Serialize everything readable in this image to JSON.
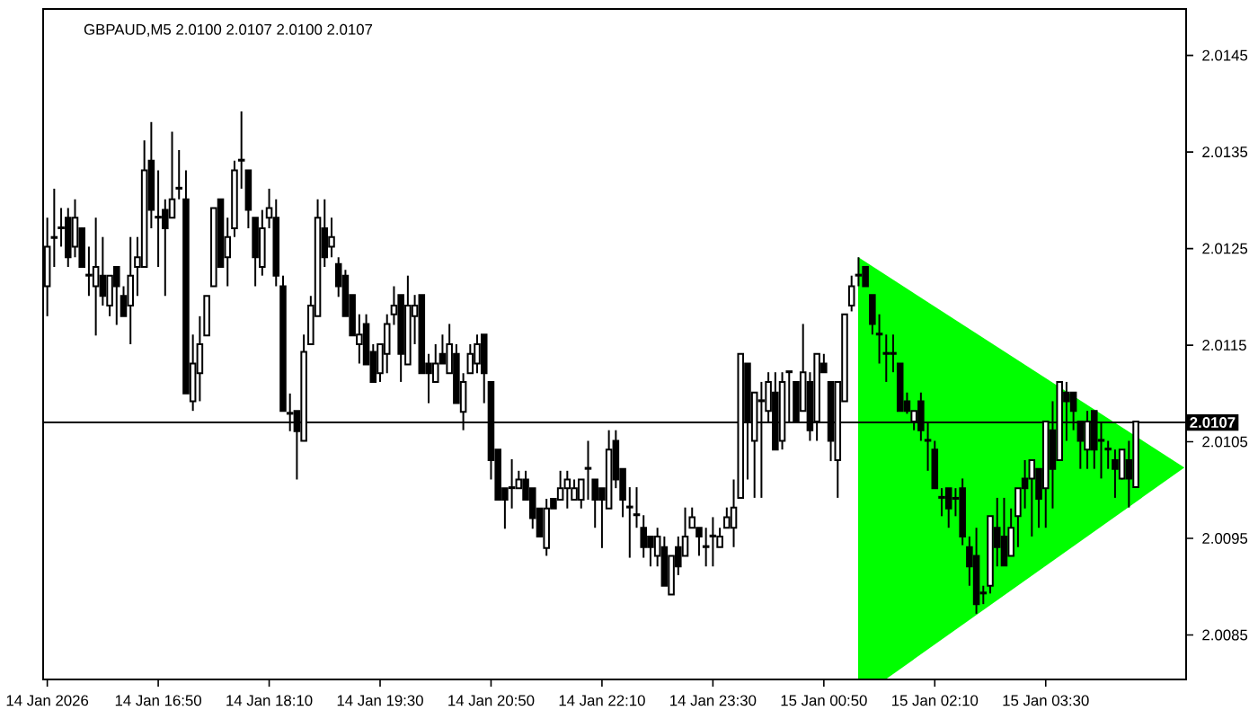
{
  "chart_data": {
    "type": "candlestick",
    "title": "GBPAUD,M5  2.0100 2.0107 2.0100 2.0107",
    "categories": [
      "14 Jan 2026",
      null,
      null,
      null,
      null,
      null,
      null,
      null,
      null,
      null,
      null,
      null,
      null,
      null,
      null,
      null,
      "14 Jan 16:50",
      null,
      null,
      null,
      null,
      null,
      null,
      null,
      null,
      null,
      null,
      null,
      null,
      null,
      null,
      null,
      "14 Jan 18:10",
      null,
      null,
      null,
      null,
      null,
      null,
      null,
      null,
      null,
      null,
      null,
      null,
      null,
      null,
      null,
      "14 Jan 19:30",
      null,
      null,
      null,
      null,
      null,
      null,
      null,
      null,
      null,
      null,
      null,
      null,
      null,
      null,
      null,
      "14 Jan 20:50",
      null,
      null,
      null,
      null,
      null,
      null,
      null,
      null,
      null,
      null,
      null,
      null,
      null,
      null,
      null,
      "14 Jan 22:10",
      null,
      null,
      null,
      null,
      null,
      null,
      null,
      null,
      null,
      null,
      null,
      null,
      null,
      null,
      null,
      "14 Jan 23:30",
      null,
      null,
      null,
      null,
      null,
      null,
      null,
      null,
      null,
      null,
      null,
      null,
      null,
      null,
      null,
      "15 Jan 00:50",
      null,
      null,
      null,
      null,
      null,
      null,
      null,
      null,
      null,
      null,
      null,
      null,
      null,
      null,
      null,
      "15 Jan 02:10",
      null,
      null,
      null,
      null,
      null,
      null,
      null,
      null,
      null,
      null,
      null,
      null,
      null,
      null,
      null,
      "15 Jan 03:30",
      null,
      null,
      null,
      null,
      null,
      null,
      null,
      null,
      null,
      null,
      null,
      null,
      null
    ],
    "ohlc": [
      [
        2.01211,
        2.01282,
        2.0118,
        2.01252
      ],
      [
        2.01261,
        2.01312,
        2.01231,
        2.01262
      ],
      [
        2.01271,
        2.01292,
        2.01252,
        2.01272
      ],
      [
        2.01282,
        2.01292,
        2.01231,
        2.01241
      ],
      [
        2.01252,
        2.01301,
        2.01241,
        2.01282
      ],
      [
        2.01271,
        2.01272,
        2.01231,
        2.01231
      ],
      [
        2.01222,
        2.01252,
        2.01201,
        2.01223
      ],
      [
        2.01211,
        2.01282,
        2.0116,
        2.01231
      ],
      [
        2.01222,
        2.01262,
        2.01191,
        2.01201
      ],
      [
        2.01191,
        2.01222,
        2.0118,
        2.01222
      ],
      [
        2.01231,
        2.01231,
        2.01171,
        2.01211
      ],
      [
        2.01201,
        2.01211,
        2.0118,
        2.0118
      ],
      [
        2.01191,
        2.01262,
        2.01151,
        2.01222
      ],
      [
        2.01231,
        2.01262,
        2.01201,
        2.01241
      ],
      [
        2.01231,
        2.01362,
        2.01231,
        2.01331
      ],
      [
        2.01341,
        2.01381,
        2.01271,
        2.0129
      ],
      [
        2.01282,
        2.01331,
        2.01231,
        2.01283
      ],
      [
        2.0129,
        2.01301,
        2.01201,
        2.01271
      ],
      [
        2.01282,
        2.01371,
        2.01282,
        2.01301
      ],
      [
        2.01312,
        2.01352,
        2.01301,
        2.01313
      ],
      [
        2.01301,
        2.01331,
        2.011,
        2.011
      ],
      [
        2.01092,
        2.01161,
        2.01082,
        2.01131
      ],
      [
        2.01121,
        2.0118,
        2.01092,
        2.01151
      ],
      [
        2.0116,
        2.01201,
        2.0116,
        2.01201
      ],
      [
        2.01211,
        2.01292,
        2.01211,
        2.01292
      ],
      [
        2.01301,
        2.01301,
        2.01231,
        2.01231
      ],
      [
        2.01241,
        2.01282,
        2.01211,
        2.01262
      ],
      [
        2.01271,
        2.01341,
        2.01262,
        2.01331
      ],
      [
        2.01341,
        2.01392,
        2.01312,
        2.01342
      ],
      [
        2.01331,
        2.01331,
        2.01271,
        2.0129
      ],
      [
        2.01282,
        2.01282,
        2.01211,
        2.01241
      ],
      [
        2.01231,
        2.0129,
        2.01222,
        2.01271
      ],
      [
        2.01282,
        2.01312,
        2.01271,
        2.01292
      ],
      [
        2.01282,
        2.01301,
        2.01211,
        2.01222
      ],
      [
        2.01211,
        2.01222,
        2.01082,
        2.01082
      ],
      [
        2.01079,
        2.011,
        2.01061,
        2.0108
      ],
      [
        2.01082,
        2.01082,
        2.01011,
        2.01061
      ],
      [
        2.01051,
        2.01161,
        2.01051,
        2.01143
      ],
      [
        2.01151,
        2.01201,
        2.01151,
        2.01191
      ],
      [
        2.0118,
        2.01301,
        2.0118,
        2.01282
      ],
      [
        2.01271,
        2.01301,
        2.01231,
        2.01241
      ],
      [
        2.01252,
        2.01282,
        2.01241,
        2.01262
      ],
      [
        2.01234,
        2.01241,
        2.012,
        2.01211
      ],
      [
        2.01222,
        2.01228,
        2.0118,
        2.0118
      ],
      [
        2.01202,
        2.01202,
        2.0116,
        2.0116
      ],
      [
        2.01151,
        2.01182,
        2.01131,
        2.01161
      ],
      [
        2.01172,
        2.01182,
        2.0113,
        2.0113
      ],
      [
        2.01143,
        2.01151,
        2.01112,
        2.01112
      ],
      [
        2.01121,
        2.01151,
        2.01112,
        2.01151
      ],
      [
        2.01141,
        2.01182,
        2.01121,
        2.01172
      ],
      [
        2.01182,
        2.01211,
        2.01171,
        2.01191
      ],
      [
        2.01202,
        2.01202,
        2.01112,
        2.01141
      ],
      [
        2.0113,
        2.01222,
        2.0113,
        2.01191
      ],
      [
        2.0118,
        2.01202,
        2.01151,
        2.01191
      ],
      [
        2.01202,
        2.01202,
        2.01121,
        2.01121
      ],
      [
        2.01131,
        2.01141,
        2.0109,
        2.01121
      ],
      [
        2.01112,
        2.01151,
        2.01112,
        2.01131
      ],
      [
        2.01141,
        2.01161,
        2.01131,
        2.01131
      ],
      [
        2.01121,
        2.01172,
        2.01121,
        2.01151
      ],
      [
        2.01141,
        2.01151,
        2.0109,
        2.0109
      ],
      [
        2.01081,
        2.01121,
        2.01062,
        2.01112
      ],
      [
        2.01121,
        2.01151,
        2.01121,
        2.01141
      ],
      [
        2.01131,
        2.01161,
        2.01121,
        2.01151
      ],
      [
        2.01161,
        2.01161,
        2.0109,
        2.01121
      ],
      [
        2.01112,
        2.01112,
        2.01011,
        2.01031
      ],
      [
        2.01042,
        2.01042,
        2.0099,
        2.0099
      ],
      [
        2.01002,
        2.01002,
        2.0096,
        2.0099
      ],
      [
        2.01002,
        2.01032,
        2.00981,
        2.01003
      ],
      [
        2.01002,
        2.0102,
        2.01002,
        2.01011
      ],
      [
        2.01011,
        2.0102,
        2.0099,
        2.0099
      ],
      [
        2.01002,
        2.01002,
        2.0096,
        2.00971
      ],
      [
        2.00981,
        2.00981,
        2.00952,
        2.00952
      ],
      [
        2.0094,
        2.00991,
        2.00932,
        2.00981
      ],
      [
        2.00991,
        2.00991,
        2.00981,
        2.00981
      ],
      [
        2.0099,
        2.0102,
        2.0099,
        2.01002
      ],
      [
        2.01002,
        2.0102,
        2.00981,
        2.01011
      ],
      [
        2.0099,
        2.01011,
        2.0099,
        2.01002
      ],
      [
        2.0099,
        2.01011,
        2.00981,
        2.01011
      ],
      [
        2.01022,
        2.01051,
        2.0099,
        2.01023
      ],
      [
        2.01011,
        2.01011,
        2.00961,
        2.0099
      ],
      [
        2.01002,
        2.01002,
        2.0094,
        2.0099
      ],
      [
        2.00981,
        2.01062,
        2.00981,
        2.01042
      ],
      [
        2.01051,
        2.01062,
        2.01002,
        2.01011
      ],
      [
        2.01022,
        2.01022,
        2.00972,
        2.0099
      ],
      [
        2.00982,
        2.01003,
        2.0093,
        2.00983
      ],
      [
        2.00974,
        2.01003,
        2.00961,
        2.00975
      ],
      [
        2.00961,
        2.00974,
        2.0093,
        2.00941
      ],
      [
        2.00952,
        2.00952,
        2.00921,
        2.00941
      ],
      [
        2.00932,
        2.00961,
        2.00921,
        2.00952
      ],
      [
        2.00941,
        2.00952,
        2.00901,
        2.00901
      ],
      [
        2.00892,
        2.00932,
        2.00892,
        2.00932
      ],
      [
        2.00941,
        2.00952,
        2.00912,
        2.00921
      ],
      [
        2.00932,
        2.00982,
        2.00932,
        2.00952
      ],
      [
        2.00961,
        2.00982,
        2.00961,
        2.00972
      ],
      [
        2.00961,
        2.00961,
        2.00932,
        2.00952
      ],
      [
        2.00941,
        2.00961,
        2.00921,
        2.00942
      ],
      [
        2.00952,
        2.00972,
        2.00921,
        2.00953
      ],
      [
        2.00941,
        2.00961,
        2.00941,
        2.00952
      ],
      [
        2.00961,
        2.00982,
        2.00961,
        2.00972
      ],
      [
        2.00961,
        2.01011,
        2.00941,
        2.00982
      ],
      [
        2.00992,
        2.01141,
        2.00992,
        2.01141
      ],
      [
        2.01131,
        2.01131,
        2.01011,
        2.01071
      ],
      [
        2.01051,
        2.01101,
        2.00992,
        2.01101
      ],
      [
        2.01092,
        2.01112,
        2.00992,
        2.01093
      ],
      [
        2.01082,
        2.01122,
        2.01071,
        2.01112
      ],
      [
        2.01101,
        2.01122,
        2.01042,
        2.01042
      ],
      [
        2.01051,
        2.01122,
        2.01042,
        2.01112
      ],
      [
        2.01122,
        2.01123,
        2.01071,
        2.01123
      ],
      [
        2.01112,
        2.01112,
        2.01071,
        2.01071
      ],
      [
        2.01082,
        2.01172,
        2.01082,
        2.01122
      ],
      [
        2.01112,
        2.01122,
        2.01051,
        2.01062
      ],
      [
        2.01071,
        2.01141,
        2.01051,
        2.01141
      ],
      [
        2.01131,
        2.01141,
        2.01122,
        2.01122
      ],
      [
        2.01112,
        2.01112,
        2.0103,
        2.01051
      ],
      [
        2.01031,
        2.01112,
        2.00992,
        2.01112
      ],
      [
        2.01092,
        2.01182,
        2.01092,
        2.01182
      ],
      [
        2.01191,
        2.01222,
        2.01185,
        2.01211
      ],
      [
        2.01222,
        2.01241,
        2.01211,
        2.01223
      ],
      [
        2.01231,
        2.01231,
        2.01211,
        2.01211
      ],
      [
        2.01202,
        2.01202,
        2.01161,
        2.01172
      ],
      [
        2.01161,
        2.01182,
        2.01131,
        2.01162
      ],
      [
        2.01141,
        2.01161,
        2.01112,
        2.01142
      ],
      [
        2.01141,
        2.01161,
        2.01122,
        2.01142
      ],
      [
        2.01131,
        2.01131,
        2.01082,
        2.01082
      ],
      [
        2.01092,
        2.01101,
        2.01079,
        2.01082
      ],
      [
        2.01071,
        2.01082,
        2.01062,
        2.01082
      ],
      [
        2.01092,
        2.01101,
        2.01051,
        2.01062
      ],
      [
        2.01051,
        2.01071,
        2.0102,
        2.01052
      ],
      [
        2.01042,
        2.01051,
        2.01002,
        2.01002
      ],
      [
        2.00992,
        2.01002,
        2.00973,
        2.00993
      ],
      [
        2.01002,
        2.01002,
        2.00961,
        2.00981
      ],
      [
        2.00992,
        2.01002,
        2.00973,
        2.00991
      ],
      [
        2.01002,
        2.01012,
        2.00943,
        2.00952
      ],
      [
        2.00941,
        2.00952,
        2.00901,
        2.00921
      ],
      [
        2.00932,
        2.00961,
        2.00872,
        2.00882
      ],
      [
        2.00893,
        2.00901,
        2.00882,
        2.00894
      ],
      [
        2.00901,
        2.00973,
        2.00893,
        2.00973
      ],
      [
        2.00961,
        2.00992,
        2.00921,
        2.00941
      ],
      [
        2.00952,
        2.00992,
        2.00922,
        2.00922
      ],
      [
        2.00932,
        2.00981,
        2.00932,
        2.00961
      ],
      [
        2.00973,
        2.01002,
        2.00941,
        2.01002
      ],
      [
        2.01012,
        2.01031,
        2.00981,
        2.01002
      ],
      [
        2.01012,
        2.01031,
        2.00952,
        2.01031
      ],
      [
        2.01022,
        2.01022,
        2.00961,
        2.00991
      ],
      [
        2.01002,
        2.01071,
        2.00961,
        2.01071
      ],
      [
        2.01062,
        2.01092,
        2.00981,
        2.01022
      ],
      [
        2.01031,
        2.01112,
        2.01031,
        2.01112
      ],
      [
        2.01101,
        2.01112,
        2.01051,
        2.01092
      ],
      [
        2.01101,
        2.01101,
        2.01062,
        2.01082
      ],
      [
        2.01071,
        2.01071,
        2.01022,
        2.01051
      ],
      [
        2.01042,
        2.01082,
        2.01022,
        2.01071
      ],
      [
        2.01082,
        2.01082,
        2.01022,
        2.01042
      ],
      [
        2.01051,
        2.01071,
        2.01012,
        2.01052
      ],
      [
        2.01042,
        2.01051,
        2.01022,
        2.01043
      ],
      [
        2.01031,
        2.01042,
        2.00992,
        2.01022
      ],
      [
        2.01012,
        2.01042,
        2.01011,
        2.01042
      ],
      [
        2.01031,
        2.01051,
        2.00982,
        2.01012
      ],
      [
        2.01003,
        2.01071,
        2.01003,
        2.01071
      ]
    ],
    "color": "#000000",
    "ylim": [
      2.00804,
      2.01498
    ],
    "yticks": [
      2.0085,
      2.0095,
      2.0105,
      2.0115,
      2.0125,
      2.0135,
      2.0145
    ],
    "ref_lines": [
      {
        "axis": "y",
        "value": 2.0107,
        "label": "2.0107",
        "color": "#000000"
      }
    ]
  }
}
